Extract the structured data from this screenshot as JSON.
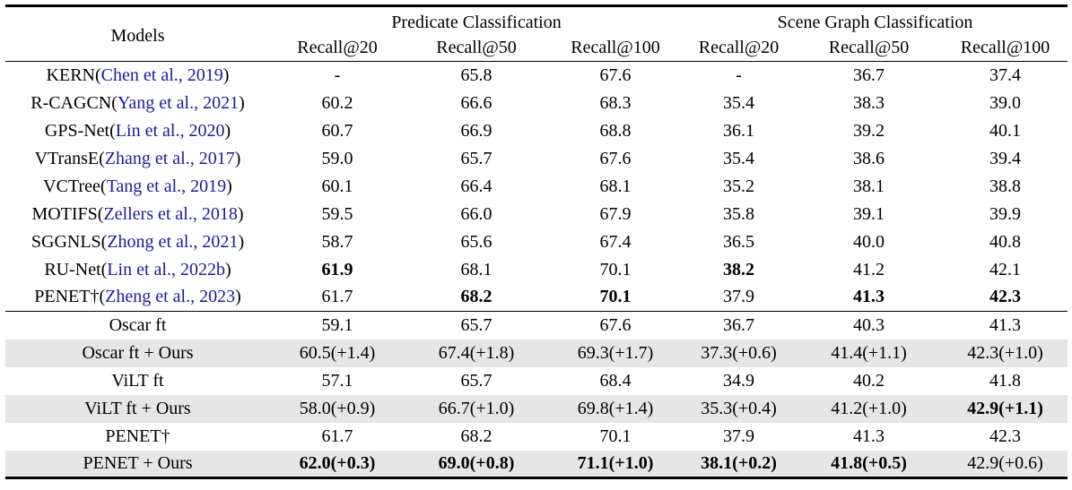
{
  "punct": {
    "open": "(",
    "close": ")"
  },
  "table": {
    "colors": {
      "citation_blue": "#1b1b9a",
      "row_highlight": "#e6e6e6",
      "rule_color": "#000000",
      "page_background": "#ffffff"
    },
    "header": {
      "models_label": "Models",
      "groups": [
        {
          "label": "Predicate Classification"
        },
        {
          "label": "Scene Graph Classification"
        }
      ],
      "subheaders": [
        "Recall@20",
        "Recall@50",
        "Recall@100",
        "Recall@20",
        "Recall@50",
        "Recall@100"
      ]
    },
    "rows": [
      {
        "model": {
          "name": "KERN",
          "cite": "Chen et al., 2019"
        },
        "values": [
          "-",
          "65.8",
          "67.6",
          "-",
          "36.7",
          "37.4"
        ],
        "bold": [
          false,
          false,
          false,
          false,
          false,
          false
        ],
        "highlight": false,
        "rule_below": false
      },
      {
        "model": {
          "name": "R-CAGCN",
          "cite": "Yang et al., 2021"
        },
        "values": [
          "60.2",
          "66.6",
          "68.3",
          "35.4",
          "38.3",
          "39.0"
        ],
        "bold": [
          false,
          false,
          false,
          false,
          false,
          false
        ],
        "highlight": false,
        "rule_below": false
      },
      {
        "model": {
          "name": "GPS-Net",
          "cite": "Lin et al., 2020"
        },
        "values": [
          "60.7",
          "66.9",
          "68.8",
          "36.1",
          "39.2",
          "40.1"
        ],
        "bold": [
          false,
          false,
          false,
          false,
          false,
          false
        ],
        "highlight": false,
        "rule_below": false
      },
      {
        "model": {
          "name": "VTransE",
          "cite": "Zhang et al., 2017"
        },
        "values": [
          "59.0",
          "65.7",
          "67.6",
          "35.4",
          "38.6",
          "39.4"
        ],
        "bold": [
          false,
          false,
          false,
          false,
          false,
          false
        ],
        "highlight": false,
        "rule_below": false
      },
      {
        "model": {
          "name": "VCTree",
          "cite": "Tang et al., 2019"
        },
        "values": [
          "60.1",
          "66.4",
          "68.1",
          "35.2",
          "38.1",
          "38.8"
        ],
        "bold": [
          false,
          false,
          false,
          false,
          false,
          false
        ],
        "highlight": false,
        "rule_below": false
      },
      {
        "model": {
          "name": "MOTIFS",
          "cite": "Zellers et al., 2018"
        },
        "values": [
          "59.5",
          "66.0",
          "67.9",
          "35.8",
          "39.1",
          "39.9"
        ],
        "bold": [
          false,
          false,
          false,
          false,
          false,
          false
        ],
        "highlight": false,
        "rule_below": false
      },
      {
        "model": {
          "name": "SGGNLS",
          "cite": "Zhong et al., 2021"
        },
        "values": [
          "58.7",
          "65.6",
          "67.4",
          "36.5",
          "40.0",
          "40.8"
        ],
        "bold": [
          false,
          false,
          false,
          false,
          false,
          false
        ],
        "highlight": false,
        "rule_below": false
      },
      {
        "model": {
          "name": "RU-Net",
          "cite": "Lin et al., 2022b"
        },
        "values": [
          "61.9",
          "68.1",
          "70.1",
          "38.2",
          "41.2",
          "42.1"
        ],
        "bold": [
          true,
          false,
          false,
          true,
          false,
          false
        ],
        "highlight": false,
        "rule_below": false
      },
      {
        "model": {
          "name": "PENET†",
          "cite": "Zheng et al., 2023"
        },
        "values": [
          "61.7",
          "68.2",
          "70.1",
          "37.9",
          "41.3",
          "42.3"
        ],
        "bold": [
          false,
          true,
          true,
          false,
          true,
          true
        ],
        "highlight": false,
        "rule_below": true
      },
      {
        "model": {
          "name": "Oscar ft",
          "cite": null
        },
        "values": [
          "59.1",
          "65.7",
          "67.6",
          "36.7",
          "40.3",
          "41.3"
        ],
        "bold": [
          false,
          false,
          false,
          false,
          false,
          false
        ],
        "highlight": false,
        "rule_below": false
      },
      {
        "model": {
          "name": "Oscar ft + Ours",
          "cite": null
        },
        "values": [
          "60.5(+1.4)",
          "67.4(+1.8)",
          "69.3(+1.7)",
          "37.3(+0.6)",
          "41.4(+1.1)",
          "42.3(+1.0)"
        ],
        "bold": [
          false,
          false,
          false,
          false,
          false,
          false
        ],
        "highlight": true,
        "rule_below": false
      },
      {
        "model": {
          "name": "ViLT ft",
          "cite": null
        },
        "values": [
          "57.1",
          "65.7",
          "68.4",
          "34.9",
          "40.2",
          "41.8"
        ],
        "bold": [
          false,
          false,
          false,
          false,
          false,
          false
        ],
        "highlight": false,
        "rule_below": false
      },
      {
        "model": {
          "name": "ViLT ft + Ours",
          "cite": null
        },
        "values": [
          "58.0(+0.9)",
          "66.7(+1.0)",
          "69.8(+1.4)",
          "35.3(+0.4)",
          "41.2(+1.0)",
          "42.9(+1.1)"
        ],
        "bold": [
          false,
          false,
          false,
          false,
          false,
          true
        ],
        "highlight": true,
        "rule_below": false
      },
      {
        "model": {
          "name": "PENET†",
          "cite": null
        },
        "values": [
          "61.7",
          "68.2",
          "70.1",
          "37.9",
          "41.3",
          "42.3"
        ],
        "bold": [
          false,
          false,
          false,
          false,
          false,
          false
        ],
        "highlight": false,
        "rule_below": false
      },
      {
        "model": {
          "name": "PENET + Ours",
          "cite": null
        },
        "values": [
          "62.0(+0.3)",
          "69.0(+0.8)",
          "71.1(+1.0)",
          "38.1(+0.2)",
          "41.8(+0.5)",
          "42.9(+0.6)"
        ],
        "bold": [
          true,
          true,
          true,
          true,
          true,
          false
        ],
        "highlight": true,
        "rule_below": false
      }
    ]
  }
}
